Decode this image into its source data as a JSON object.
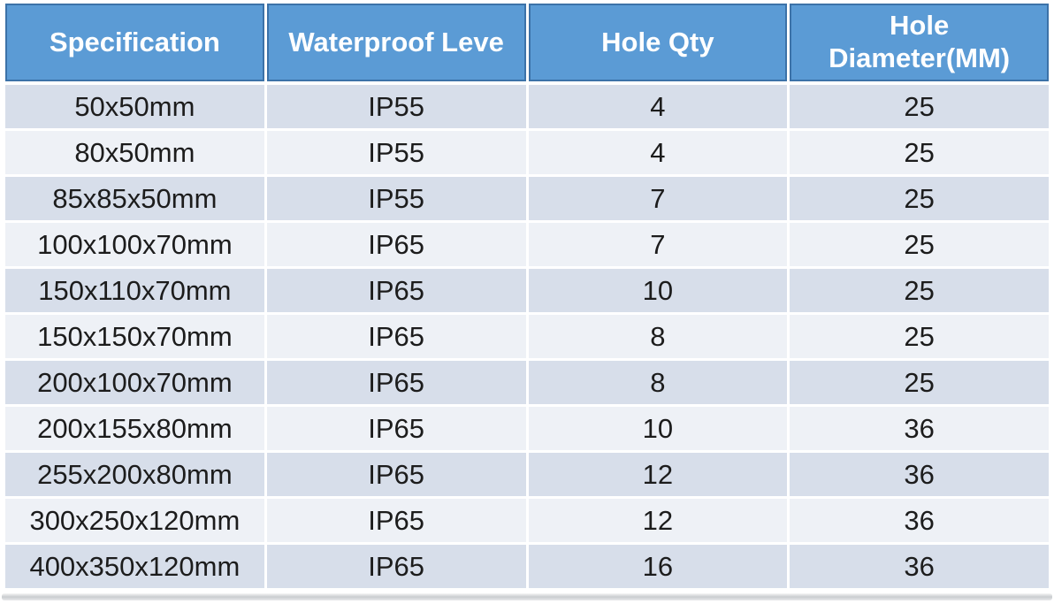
{
  "chart_data": {
    "type": "table",
    "columns": [
      "Specification",
      "Waterproof Leve",
      "Hole Qty",
      "Hole Diameter(MM)"
    ],
    "rows": [
      [
        "50x50mm",
        "IP55",
        "4",
        "25"
      ],
      [
        "80x50mm",
        "IP55",
        "4",
        "25"
      ],
      [
        "85x85x50mm",
        "IP55",
        "7",
        "25"
      ],
      [
        "100x100x70mm",
        "IP65",
        "7",
        "25"
      ],
      [
        "150x110x70mm",
        "IP65",
        "10",
        "25"
      ],
      [
        "150x150x70mm",
        "IP65",
        "8",
        "25"
      ],
      [
        "200x100x70mm",
        "IP65",
        "8",
        "25"
      ],
      [
        "200x155x80mm",
        "IP65",
        "10",
        "36"
      ],
      [
        "255x200x80mm",
        "IP65",
        "12",
        "36"
      ],
      [
        "300x250x120mm",
        "IP65",
        "12",
        "36"
      ],
      [
        "400x350x120mm",
        "IP65",
        "16",
        "36"
      ]
    ],
    "layout": {
      "header_position": "top",
      "striped": true,
      "column_alignment": "center"
    }
  },
  "colors": {
    "page_bg": "#ffffff",
    "header_bg": "#5b9bd5",
    "header_border": "#3c72a8",
    "header_text": "#ffffff",
    "row_odd_bg": "#d7deea",
    "row_even_bg": "#eef1f6",
    "cell_text": "#1c1c1c",
    "divider": "#ffffff"
  }
}
